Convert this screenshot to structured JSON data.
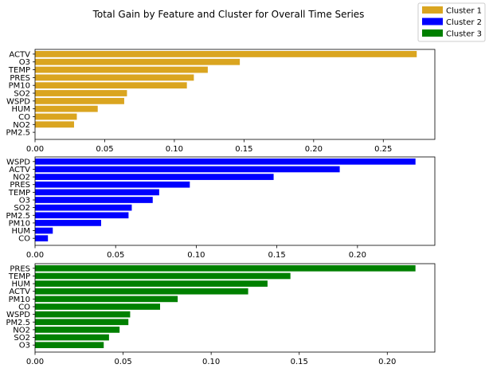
{
  "title": "Total Gain by Feature and Cluster for Overall Time Series",
  "legend": {
    "placement": "top-right",
    "entries": [
      {
        "label": "Cluster 1",
        "color": "#DAA520"
      },
      {
        "label": "Cluster 2",
        "color": "#0000FF"
      },
      {
        "label": "Cluster 3",
        "color": "#008000"
      }
    ]
  },
  "chart_data": [
    {
      "type": "bar",
      "orientation": "horizontal",
      "series_name": "Cluster 1",
      "color": "#DAA520",
      "categories": [
        "ACTV",
        "O3",
        "TEMP",
        "PRES",
        "PM10",
        "SO2",
        "WSPD",
        "HUM",
        "CO",
        "NO2",
        "PM2.5"
      ],
      "values": [
        0.274,
        0.147,
        0.124,
        0.114,
        0.109,
        0.066,
        0.064,
        0.045,
        0.03,
        0.028,
        0.0
      ],
      "xlim": [
        0,
        0.287
      ],
      "xticks": [
        "0.00",
        "0.05",
        "0.10",
        "0.15",
        "0.20",
        "0.25"
      ],
      "grid": false
    },
    {
      "type": "bar",
      "orientation": "horizontal",
      "series_name": "Cluster 2",
      "color": "#0000FF",
      "categories": [
        "WSPD",
        "ACTV",
        "NO2",
        "PRES",
        "TEMP",
        "O3",
        "SO2",
        "PM2.5",
        "PM10",
        "HUM",
        "CO"
      ],
      "values": [
        0.236,
        0.189,
        0.148,
        0.096,
        0.077,
        0.073,
        0.06,
        0.058,
        0.041,
        0.011,
        0.008
      ],
      "xlim": [
        0,
        0.248
      ],
      "xticks": [
        "0.00",
        "0.05",
        "0.10",
        "0.15",
        "0.20"
      ],
      "grid": false
    },
    {
      "type": "bar",
      "orientation": "horizontal",
      "series_name": "Cluster 3",
      "color": "#008000",
      "categories": [
        "PRES",
        "TEMP",
        "HUM",
        "ACTV",
        "PM10",
        "CO",
        "WSPD",
        "PM2.5",
        "NO2",
        "SO2",
        "O3"
      ],
      "values": [
        0.216,
        0.145,
        0.132,
        0.121,
        0.081,
        0.071,
        0.054,
        0.053,
        0.048,
        0.042,
        0.039
      ],
      "xlim": [
        0,
        0.227
      ],
      "xticks": [
        "0.00",
        "0.05",
        "0.10",
        "0.15",
        "0.20"
      ],
      "grid": false
    }
  ]
}
